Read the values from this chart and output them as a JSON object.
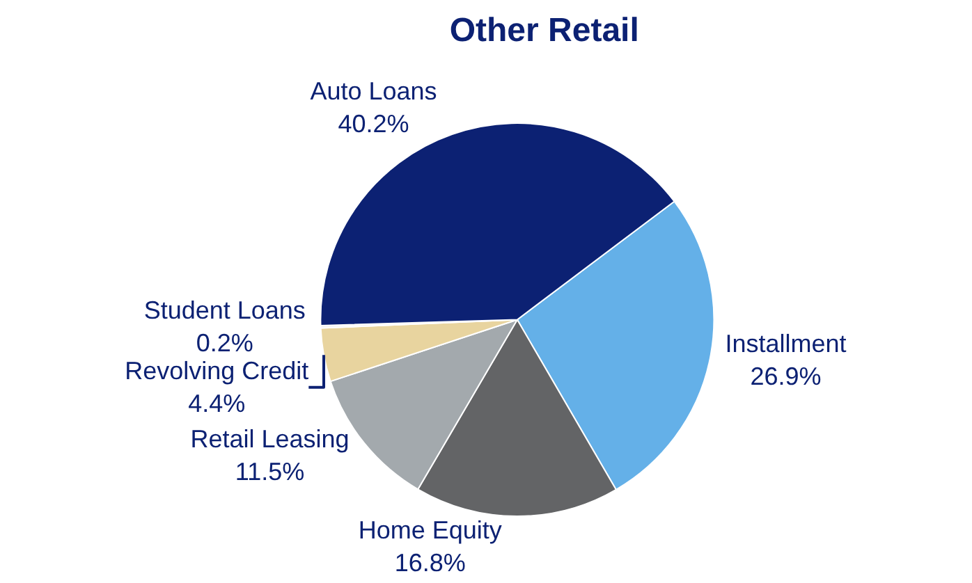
{
  "chart_data": {
    "type": "pie",
    "title": "Other Retail",
    "categories": [
      "Installment",
      "Home Equity",
      "Retail Leasing",
      "Revolving Credit",
      "Student Loans",
      "Auto Loans"
    ],
    "values": [
      26.9,
      16.8,
      11.5,
      4.4,
      0.2,
      40.2
    ],
    "value_labels": [
      "26.9%",
      "16.8%",
      "11.5%",
      "4.4%",
      "0.2%",
      "40.2%"
    ],
    "colors": [
      "#64b0e8",
      "#636466",
      "#a3a9ad",
      "#e8d49f",
      "#f2f2f2",
      "#0c2173"
    ],
    "legend": false
  }
}
